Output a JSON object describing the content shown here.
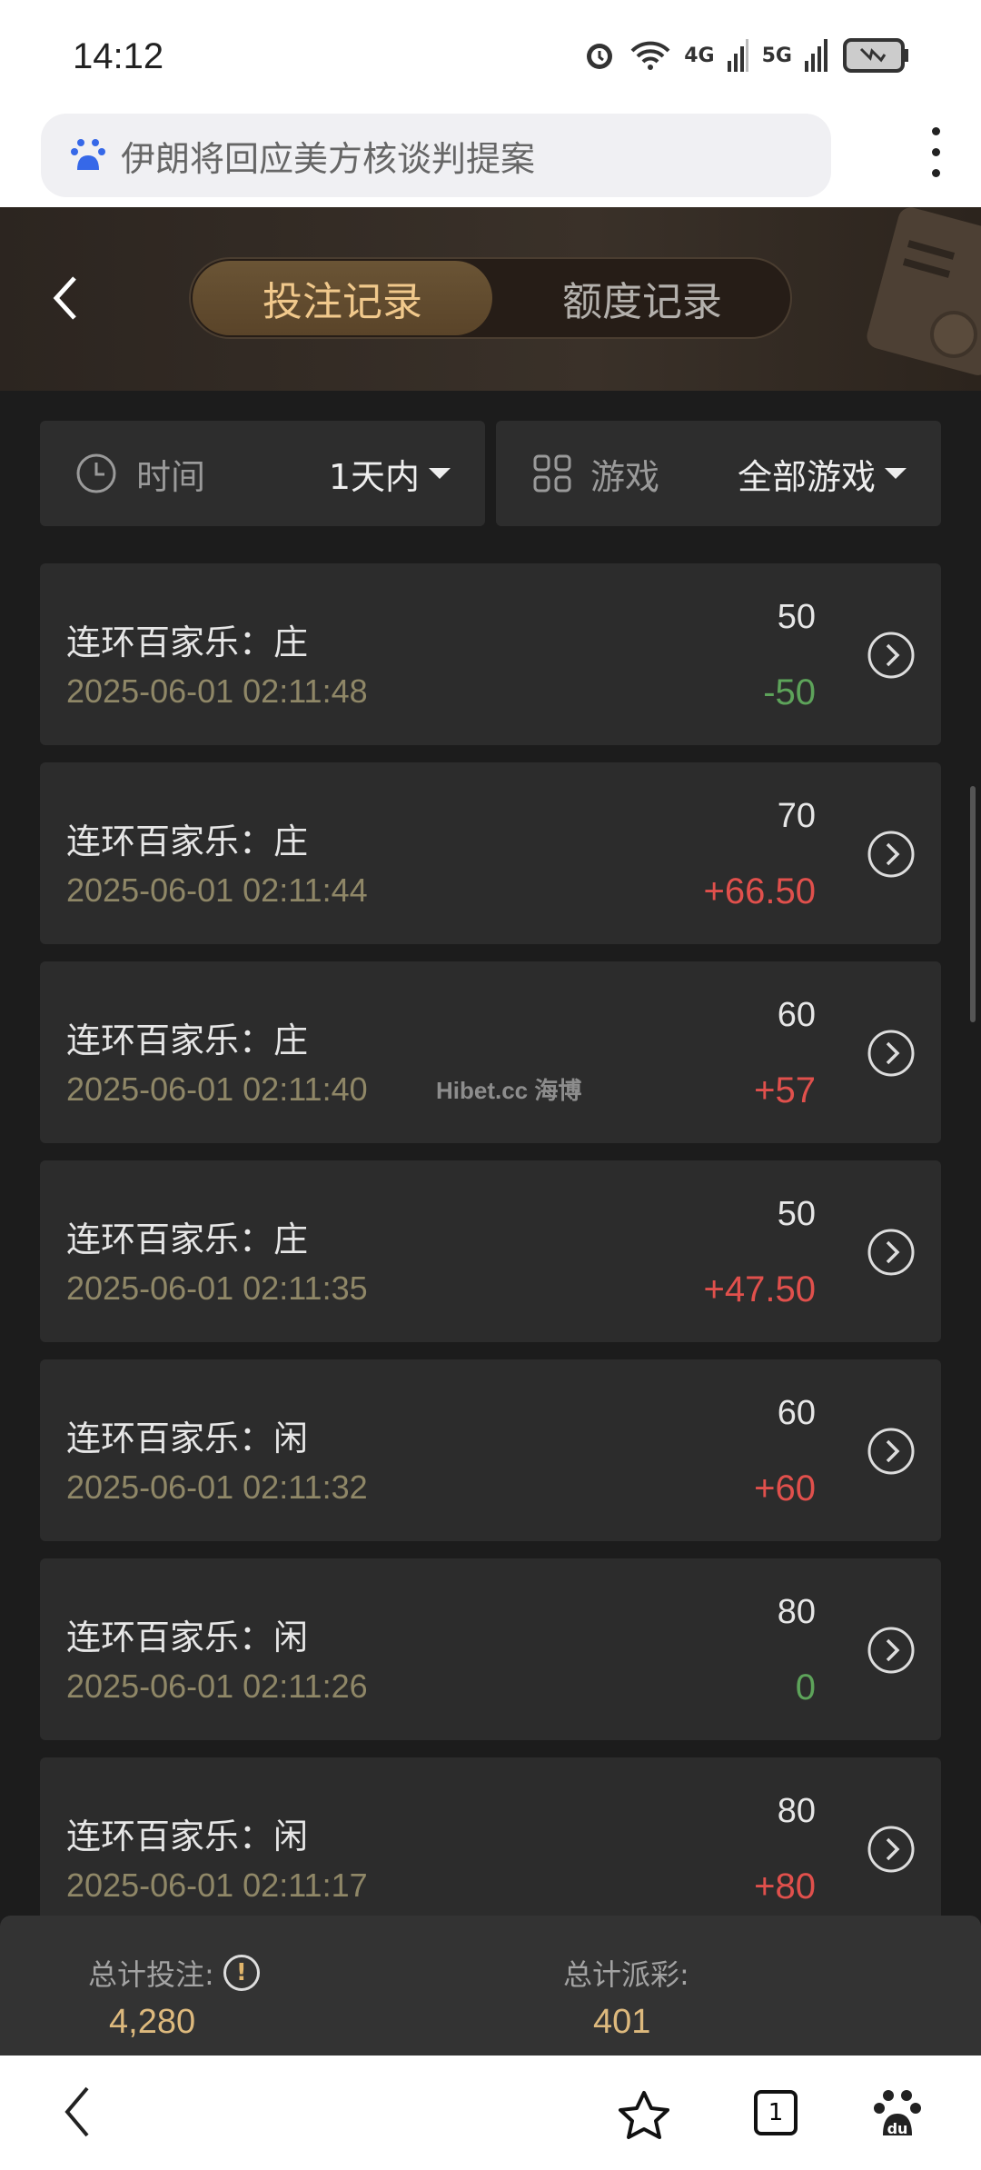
{
  "status_bar": {
    "time": "14:12",
    "net1": "4G",
    "net2": "5G"
  },
  "browser": {
    "url_text": "伊朗将回应美方核谈判提案"
  },
  "header": {
    "tabs": [
      {
        "label": "投注记录",
        "active": true
      },
      {
        "label": "额度记录",
        "active": false
      }
    ]
  },
  "filters": {
    "time": {
      "label": "时间",
      "value": "1天内"
    },
    "game": {
      "label": "游戏",
      "value": "全部游戏"
    }
  },
  "records": [
    {
      "title": "连环百家乐：庄",
      "date": "2025-06-01 02:11:48",
      "amount": "50",
      "result": "-50",
      "result_type": "loss"
    },
    {
      "title": "连环百家乐：庄",
      "date": "2025-06-01 02:11:44",
      "amount": "70",
      "result": "+66.50",
      "result_type": "win"
    },
    {
      "title": "连环百家乐：庄",
      "date": "2025-06-01 02:11:40",
      "amount": "60",
      "result": "+57",
      "result_type": "win"
    },
    {
      "title": "连环百家乐：庄",
      "date": "2025-06-01 02:11:35",
      "amount": "50",
      "result": "+47.50",
      "result_type": "win"
    },
    {
      "title": "连环百家乐：闲",
      "date": "2025-06-01 02:11:32",
      "amount": "60",
      "result": "+60",
      "result_type": "win"
    },
    {
      "title": "连环百家乐：闲",
      "date": "2025-06-01 02:11:26",
      "amount": "80",
      "result": "0",
      "result_type": "zero"
    },
    {
      "title": "连环百家乐：闲",
      "date": "2025-06-01 02:11:17",
      "amount": "80",
      "result": "+80",
      "result_type": "win"
    }
  ],
  "watermark": "Hibet.cc 海博",
  "summary": {
    "total_bet_label": "总计投注:",
    "total_bet": "4,280",
    "total_payout_label": "总计派彩:",
    "total_payout": "401"
  },
  "bottom_nav": {
    "tab_count": "1"
  },
  "colors": {
    "win": "#e0504c",
    "loss": "#5da35a",
    "accent": "#f1c98c"
  }
}
